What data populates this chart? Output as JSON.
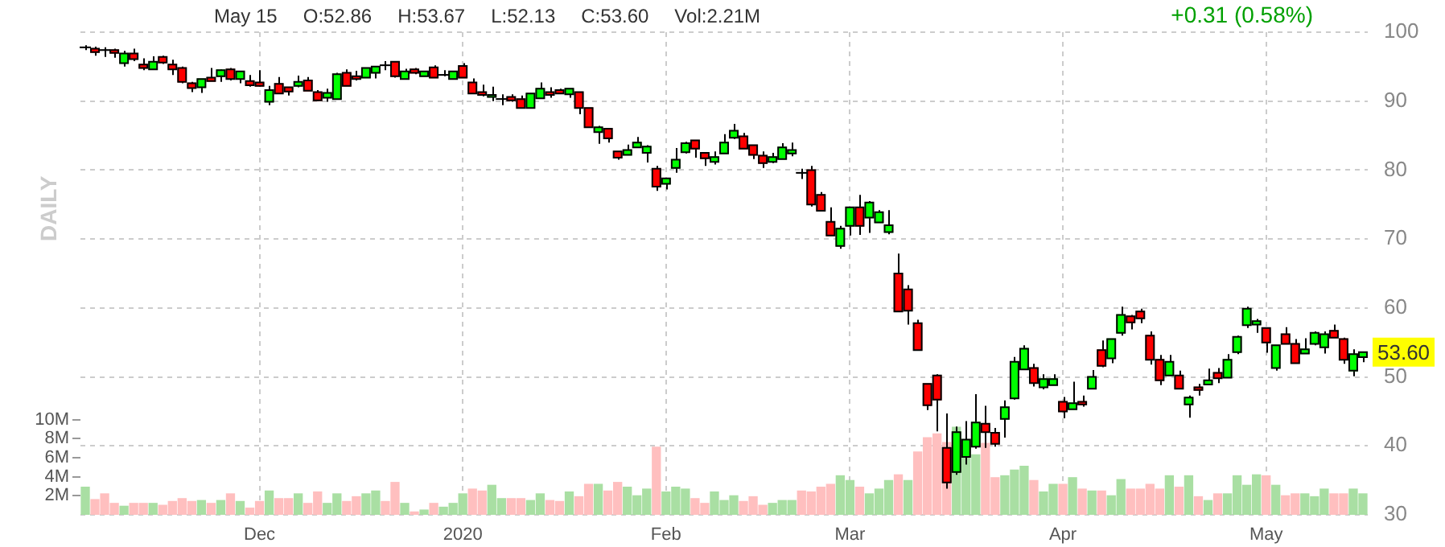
{
  "chart_data": {
    "type": "candlestick",
    "y2label": "DAILY",
    "annotations": [
      "May 15",
      "O:52.86",
      "H:53.67",
      "L:52.13",
      "C:53.60",
      "Vol:2.21M",
      "+0.31 (0.58%)",
      {
        "text": "53.60",
        "y": 53.6
      }
    ],
    "categories": [
      null,
      null,
      null,
      null,
      null,
      null,
      null,
      null,
      null,
      null,
      null,
      null,
      null,
      null,
      null,
      null,
      null,
      null,
      "Dec",
      null,
      null,
      null,
      null,
      null,
      null,
      null,
      null,
      null,
      null,
      null,
      null,
      null,
      null,
      null,
      null,
      null,
      null,
      null,
      null,
      "2020",
      null,
      null,
      null,
      null,
      null,
      null,
      null,
      null,
      null,
      null,
      null,
      null,
      null,
      null,
      null,
      null,
      null,
      null,
      null,
      null,
      "Feb",
      null,
      null,
      null,
      null,
      null,
      null,
      null,
      null,
      null,
      null,
      null,
      null,
      null,
      null,
      null,
      null,
      null,
      null,
      "Mar",
      null,
      null,
      null,
      null,
      null,
      null,
      null,
      null,
      null,
      null,
      null,
      null,
      null,
      null,
      null,
      null,
      null,
      null,
      null,
      null,
      null,
      "Apr",
      null,
      null,
      null,
      null,
      null,
      null,
      null,
      null,
      null,
      null,
      null,
      null,
      null,
      null,
      null,
      null,
      null,
      null,
      null,
      null,
      "May",
      null,
      null,
      null,
      null,
      null,
      null,
      null,
      null,
      null,
      null
    ],
    "series": [
      {
        "type": "bar",
        "axis": "y2",
        "values": [
          2.9,
          1.6,
          2.2,
          1.2,
          0.9,
          1.2,
          1.2,
          1.2,
          1.0,
          1.4,
          1.7,
          1.4,
          1.5,
          1.2,
          1.5,
          2.2,
          1.4,
          0.7,
          1.4,
          2.5,
          1.7,
          1.7,
          2.2,
          1.2,
          2.4,
          1.2,
          2.2,
          1.4,
          1.9,
          2.2,
          2.5,
          1.4,
          3.4,
          1.2,
          0.3,
          0.5,
          1.2,
          0.8,
          1.2,
          2.2,
          2.7,
          2.5,
          3.1,
          1.7,
          1.7,
          1.7,
          1.5,
          2.2,
          1.5,
          1.4,
          2.4,
          1.9,
          3.2,
          3.2,
          2.5,
          3.4,
          2.9,
          2.0,
          2.7,
          7.1,
          2.4,
          2.9,
          2.7,
          1.7,
          1.2,
          2.4,
          1.5,
          2.0,
          1.4,
          1.9,
          1.0,
          1.2,
          1.5,
          1.5,
          2.5,
          2.4,
          2.9,
          3.2,
          4.1,
          3.6,
          2.9,
          2.2,
          2.7,
          3.6,
          4.2,
          3.6,
          6.6,
          8.1,
          8.5,
          7.6,
          9.2,
          7.6,
          6.3,
          7.5,
          3.9,
          4.1,
          4.7,
          5.1,
          3.6,
          2.4,
          3.2,
          3.2,
          3.9,
          2.7,
          2.5,
          2.5,
          2.0,
          3.7,
          2.7,
          2.7,
          3.2,
          2.7,
          4.1,
          2.9,
          4.1,
          1.9,
          1.5,
          2.2,
          2.2,
          4.1,
          3.1,
          4.2,
          4.1,
          3.1,
          2.0,
          2.2,
          2.2,
          1.9,
          2.7,
          2.2,
          2.2,
          2.7,
          2.2
        ],
        "colors": [
          "#a9dfa3",
          "#ffbfbf",
          "#ffbfbf",
          "#ffbfbf",
          "#a9dfa3",
          "#ffbfbf",
          "#ffbfbf",
          "#a9dfa3",
          "#ffbfbf",
          "#ffbfbf",
          "#ffbfbf",
          "#ffbfbf",
          "#a9dfa3",
          "#ffbfbf",
          "#a9dfa3",
          "#ffbfbf",
          "#a9dfa3",
          "#ffbfbf",
          "#ffbfbf",
          "#a9dfa3",
          "#ffbfbf",
          "#ffbfbf",
          "#a9dfa3",
          "#ffbfbf",
          "#ffbfbf",
          "#a9dfa3",
          "#a9dfa3",
          "#ffbfbf",
          "#ffbfbf",
          "#a9dfa3",
          "#a9dfa3",
          "#ffbfbf",
          "#ffbfbf",
          "#a9dfa3",
          "#ffbfbf",
          "#a9dfa3",
          "#ffbfbf",
          "#a9dfa3",
          "#a9dfa3",
          "#a9dfa3",
          "#ffbfbf",
          "#ffbfbf",
          "#a9dfa3",
          "#a9dfa3",
          "#ffbfbf",
          "#ffbfbf",
          "#a9dfa3",
          "#a9dfa3",
          "#ffbfbf",
          "#ffbfbf",
          "#a9dfa3",
          "#ffbfbf",
          "#ffbfbf",
          "#a9dfa3",
          "#ffbfbf",
          "#ffbfbf",
          "#a9dfa3",
          "#a9dfa3",
          "#a9dfa3",
          "#ffbfbf",
          "#a9dfa3",
          "#a9dfa3",
          "#a9dfa3",
          "#ffbfbf",
          "#ffbfbf",
          "#a9dfa3",
          "#a9dfa3",
          "#a9dfa3",
          "#ffbfbf",
          "#ffbfbf",
          "#ffbfbf",
          "#a9dfa3",
          "#a9dfa3",
          "#a9dfa3",
          "#ffbfbf",
          "#ffbfbf",
          "#ffbfbf",
          "#ffbfbf",
          "#a9dfa3",
          "#a9dfa3",
          "#ffbfbf",
          "#a9dfa3",
          "#a9dfa3",
          "#a9dfa3",
          "#ffbfbf",
          "#a9dfa3",
          "#ffbfbf",
          "#ffbfbf",
          "#ffbfbf",
          "#ffbfbf",
          "#a9dfa3",
          "#a9dfa3",
          "#a9dfa3",
          "#ffbfbf",
          "#ffbfbf",
          "#a9dfa3",
          "#a9dfa3",
          "#a9dfa3",
          "#ffbfbf",
          "#a9dfa3",
          "#a9dfa3",
          "#ffbfbf",
          "#a9dfa3",
          "#ffbfbf",
          "#a9dfa3",
          "#ffbfbf",
          "#a9dfa3",
          "#a9dfa3",
          "#ffbfbf",
          "#ffbfbf",
          "#ffbfbf",
          "#ffbfbf",
          "#a9dfa3",
          "#ffbfbf",
          "#a9dfa3",
          "#ffbfbf",
          "#a9dfa3",
          "#ffbfbf",
          "#a9dfa3",
          "#a9dfa3",
          "#a9dfa3",
          "#a9dfa3",
          "#ffbfbf",
          "#a9dfa3",
          "#ffbfbf",
          "#ffbfbf",
          "#a9dfa3",
          "#a9dfa3",
          "#a9dfa3",
          "#ffbfbf",
          "#ffbfbf",
          "#a9dfa3",
          "#a9dfa3"
        ]
      },
      {
        "ohlc": [
          [
            97.8,
            98.1,
            97.4,
            97.8
          ],
          [
            97.6,
            97.9,
            96.6,
            97.1
          ],
          [
            97.4,
            97.8,
            96.4,
            97.4
          ],
          [
            97.4,
            97.6,
            96.3,
            97.0
          ],
          [
            95.5,
            97.3,
            95.0,
            96.9
          ],
          [
            96.9,
            97.6,
            95.8,
            96.1
          ],
          [
            95.3,
            96.2,
            94.5,
            94.8
          ],
          [
            94.6,
            96.5,
            94.6,
            95.7
          ],
          [
            96.4,
            96.6,
            95.4,
            95.6
          ],
          [
            95.3,
            96.0,
            93.8,
            94.6
          ],
          [
            94.8,
            95.0,
            92.6,
            92.8
          ],
          [
            92.6,
            92.8,
            91.3,
            91.9
          ],
          [
            92.0,
            93.2,
            91.2,
            93.2
          ],
          [
            93.4,
            94.8,
            92.9,
            92.9
          ],
          [
            93.6,
            94.6,
            92.8,
            94.5
          ],
          [
            94.6,
            94.8,
            93.0,
            93.2
          ],
          [
            93.2,
            94.4,
            92.6,
            94.3
          ],
          [
            92.9,
            93.8,
            92.1,
            92.3
          ],
          [
            92.7,
            94.5,
            92.1,
            92.2
          ],
          [
            89.9,
            92.2,
            89.4,
            91.6
          ],
          [
            92.5,
            93.5,
            91.1,
            91.1
          ],
          [
            92.0,
            92.0,
            90.8,
            91.4
          ],
          [
            92.2,
            93.7,
            92.0,
            92.8
          ],
          [
            93.0,
            93.5,
            91.5,
            91.5
          ],
          [
            91.3,
            91.6,
            90.0,
            90.1
          ],
          [
            90.5,
            91.8,
            89.9,
            91.2
          ],
          [
            90.3,
            94.1,
            90.2,
            93.9
          ],
          [
            94.1,
            94.6,
            92.2,
            92.2
          ],
          [
            93.6,
            94.4,
            93.0,
            93.2
          ],
          [
            93.4,
            94.8,
            93.4,
            94.8
          ],
          [
            94.1,
            95.1,
            93.3,
            95.0
          ],
          [
            95.2,
            95.8,
            94.5,
            95.2
          ],
          [
            95.7,
            95.8,
            93.4,
            93.6
          ],
          [
            93.2,
            94.7,
            93.2,
            94.3
          ],
          [
            94.6,
            94.8,
            93.9,
            94.1
          ],
          [
            93.6,
            94.3,
            93.6,
            94.3
          ],
          [
            94.9,
            95.2,
            93.4,
            93.4
          ],
          [
            93.8,
            94.5,
            93.6,
            93.8
          ],
          [
            93.2,
            94.4,
            93.2,
            94.3
          ],
          [
            95.1,
            95.5,
            93.4,
            93.4
          ],
          [
            92.7,
            93.3,
            91.1,
            91.1
          ],
          [
            91.3,
            92.4,
            90.7,
            90.9
          ],
          [
            90.6,
            92.1,
            90.0,
            90.9
          ],
          [
            90.3,
            91.0,
            89.4,
            90.3
          ],
          [
            90.6,
            91.0,
            89.9,
            90.1
          ],
          [
            90.3,
            90.8,
            89.0,
            89.0
          ],
          [
            89.0,
            91.1,
            89.0,
            91.1
          ],
          [
            90.4,
            92.7,
            90.4,
            91.8
          ],
          [
            91.3,
            92.0,
            90.5,
            90.9
          ],
          [
            91.6,
            91.8,
            91.1,
            91.1
          ],
          [
            91.0,
            91.8,
            90.5,
            91.8
          ],
          [
            91.3,
            91.3,
            88.1,
            89.0
          ],
          [
            89.0,
            89.0,
            86.2,
            86.2
          ],
          [
            85.5,
            86.4,
            83.8,
            86.2
          ],
          [
            86.0,
            86.1,
            84.0,
            84.6
          ],
          [
            82.7,
            82.7,
            81.5,
            81.8
          ],
          [
            82.2,
            83.7,
            82.2,
            82.9
          ],
          [
            83.3,
            84.8,
            83.3,
            84.0
          ],
          [
            82.5,
            83.6,
            81.1,
            83.4
          ],
          [
            80.2,
            80.6,
            77.0,
            77.6
          ],
          [
            78.0,
            78.8,
            77.2,
            78.8
          ],
          [
            80.3,
            83.2,
            79.6,
            81.5
          ],
          [
            82.6,
            84.1,
            82.4,
            83.9
          ],
          [
            84.3,
            84.3,
            81.8,
            83.1
          ],
          [
            82.5,
            82.5,
            80.6,
            81.7
          ],
          [
            81.2,
            82.7,
            80.8,
            81.9
          ],
          [
            82.4,
            85.2,
            82.4,
            84.0
          ],
          [
            84.7,
            86.7,
            84.5,
            85.7
          ],
          [
            84.9,
            85.4,
            83.1,
            83.1
          ],
          [
            83.6,
            83.6,
            81.6,
            82.2
          ],
          [
            82.1,
            82.7,
            80.3,
            81.0
          ],
          [
            81.2,
            82.5,
            81.0,
            81.9
          ],
          [
            81.6,
            83.9,
            81.6,
            83.3
          ],
          [
            82.4,
            84.0,
            82.0,
            82.9
          ],
          [
            79.6,
            80.2,
            78.7,
            79.6
          ],
          [
            80.0,
            80.6,
            74.7,
            75.0
          ],
          [
            76.4,
            76.8,
            74.1,
            74.1
          ],
          [
            72.5,
            74.6,
            70.5,
            70.5
          ],
          [
            69.0,
            71.9,
            68.6,
            71.5
          ],
          [
            71.9,
            74.6,
            70.5,
            74.6
          ],
          [
            74.6,
            76.4,
            70.6,
            71.9
          ],
          [
            73.1,
            75.5,
            70.9,
            75.3
          ],
          [
            72.4,
            74.2,
            72.4,
            73.9
          ],
          [
            71.0,
            74.2,
            70.7,
            72.0
          ],
          [
            65.0,
            67.9,
            59.5,
            59.5
          ],
          [
            62.7,
            63.3,
            57.6,
            59.6
          ],
          [
            57.8,
            58.3,
            53.9,
            53.9
          ],
          [
            49.0,
            49.0,
            45.2,
            45.9
          ],
          [
            50.2,
            50.4,
            42.1,
            46.7
          ],
          [
            39.7,
            44.7,
            33.8,
            34.7
          ],
          [
            36.2,
            42.8,
            35.8,
            42.0
          ],
          [
            38.4,
            43.6,
            37.3,
            40.9
          ],
          [
            39.9,
            47.5,
            39.6,
            43.4
          ],
          [
            43.2,
            45.8,
            39.7,
            42.0
          ],
          [
            41.9,
            42.6,
            39.9,
            40.3
          ],
          [
            43.9,
            46.6,
            41.2,
            45.6
          ],
          [
            46.9,
            52.9,
            46.7,
            52.2
          ],
          [
            51.1,
            54.6,
            51.1,
            54.1
          ],
          [
            51.3,
            51.9,
            48.6,
            49.1
          ],
          [
            48.5,
            50.4,
            48.2,
            49.7
          ],
          [
            48.8,
            50.4,
            48.8,
            49.7
          ],
          [
            46.4,
            47.1,
            44.0,
            45.0
          ],
          [
            45.3,
            49.3,
            45.3,
            46.2
          ],
          [
            46.4,
            47.3,
            45.7,
            46.0
          ],
          [
            48.3,
            51.0,
            48.3,
            50.0
          ],
          [
            53.9,
            55.3,
            51.4,
            51.6
          ],
          [
            52.7,
            55.5,
            52.0,
            55.5
          ],
          [
            56.4,
            60.2,
            56.0,
            59.0
          ],
          [
            58.8,
            59.0,
            56.9,
            57.9
          ],
          [
            59.5,
            59.9,
            57.8,
            58.5
          ],
          [
            56.0,
            56.6,
            51.8,
            52.5
          ],
          [
            52.5,
            53.2,
            48.8,
            49.5
          ],
          [
            50.2,
            53.2,
            50.2,
            52.2
          ],
          [
            50.2,
            50.9,
            48.3,
            48.3
          ],
          [
            46.0,
            47.3,
            44.1,
            47.0
          ],
          [
            48.5,
            49.0,
            47.3,
            48.1
          ],
          [
            48.9,
            51.2,
            48.9,
            49.5
          ],
          [
            50.6,
            51.3,
            49.1,
            49.8
          ],
          [
            49.9,
            53.3,
            49.9,
            52.5
          ],
          [
            53.6,
            56.0,
            53.3,
            55.8
          ],
          [
            57.5,
            60.2,
            57.1,
            59.9
          ],
          [
            57.6,
            58.4,
            56.4,
            58.1
          ],
          [
            57.1,
            57.1,
            53.5,
            55.0
          ],
          [
            51.3,
            54.6,
            50.9,
            54.6
          ],
          [
            56.2,
            57.2,
            54.8,
            54.8
          ],
          [
            54.8,
            55.5,
            52.0,
            52.0
          ],
          [
            53.4,
            55.6,
            53.4,
            54.0
          ],
          [
            54.8,
            56.6,
            54.6,
            56.4
          ],
          [
            54.3,
            56.6,
            53.4,
            56.2
          ],
          [
            56.7,
            57.6,
            55.7,
            55.7
          ],
          [
            55.5,
            55.7,
            51.9,
            52.5
          ],
          [
            50.9,
            54.0,
            50.1,
            53.3
          ],
          [
            52.86,
            53.67,
            52.13,
            53.6
          ]
        ],
        "colors": [
          "#000000",
          "#ff0000",
          "#000000",
          "#ff0000",
          "#00ff00",
          "#ff0000",
          "#ff0000",
          "#00ff00",
          "#ff0000",
          "#ff0000",
          "#ff0000",
          "#ff0000",
          "#00ff00",
          "#ff0000",
          "#00ff00",
          "#ff0000",
          "#00ff00",
          "#ff0000",
          "#ff0000",
          "#00ff00",
          "#ff0000",
          "#ff0000",
          "#00ff00",
          "#ff0000",
          "#ff0000",
          "#00ff00",
          "#00ff00",
          "#ff0000",
          "#ff0000",
          "#00ff00",
          "#00ff00",
          "#000000",
          "#ff0000",
          "#00ff00",
          "#ff0000",
          "#00ff00",
          "#ff0000",
          "#000000",
          "#00ff00",
          "#ff0000",
          "#ff0000",
          "#ff0000",
          "#00ff00",
          "#000000",
          "#ff0000",
          "#ff0000",
          "#00ff00",
          "#00ff00",
          "#ff0000",
          "#ff0000",
          "#00ff00",
          "#ff0000",
          "#ff0000",
          "#00ff00",
          "#ff0000",
          "#ff0000",
          "#00ff00",
          "#00ff00",
          "#00ff00",
          "#ff0000",
          "#00ff00",
          "#00ff00",
          "#00ff00",
          "#ff0000",
          "#ff0000",
          "#00ff00",
          "#00ff00",
          "#00ff00",
          "#ff0000",
          "#ff0000",
          "#ff0000",
          "#00ff00",
          "#00ff00",
          "#00ff00",
          "#000000",
          "#ff0000",
          "#ff0000",
          "#ff0000",
          "#00ff00",
          "#00ff00",
          "#ff0000",
          "#00ff00",
          "#00ff00",
          "#00ff00",
          "#ff0000",
          "#ff0000",
          "#ff0000",
          "#ff0000",
          "#ff0000",
          "#ff0000",
          "#00ff00",
          "#00ff00",
          "#00ff00",
          "#ff0000",
          "#ff0000",
          "#00ff00",
          "#00ff00",
          "#00ff00",
          "#ff0000",
          "#00ff00",
          "#00ff00",
          "#ff0000",
          "#00ff00",
          "#ff0000",
          "#00ff00",
          "#ff0000",
          "#00ff00",
          "#00ff00",
          "#ff0000",
          "#ff0000",
          "#ff0000",
          "#ff0000",
          "#00ff00",
          "#ff0000",
          "#00ff00",
          "#ff0000",
          "#00ff00",
          "#ff0000",
          "#00ff00",
          "#00ff00",
          "#00ff00",
          "#00ff00",
          "#ff0000",
          "#00ff00",
          "#ff0000",
          "#ff0000",
          "#00ff00",
          "#00ff00",
          "#00ff00",
          "#ff0000",
          "#ff0000",
          "#00ff00",
          "#00ff00"
        ]
      }
    ],
    "ylim": [
      30,
      100
    ],
    "yticks": [
      30,
      40,
      50,
      60,
      70,
      80,
      90,
      100
    ],
    "y2lim": [
      0,
      50.7
    ],
    "y2ticks": [
      {
        "value": 2,
        "label": "2M"
      },
      {
        "value": 4,
        "label": "4M"
      },
      {
        "value": 6,
        "label": "6M"
      },
      {
        "value": 8,
        "label": "8M"
      },
      {
        "value": 10,
        "label": "10M"
      }
    ],
    "grid": true
  }
}
